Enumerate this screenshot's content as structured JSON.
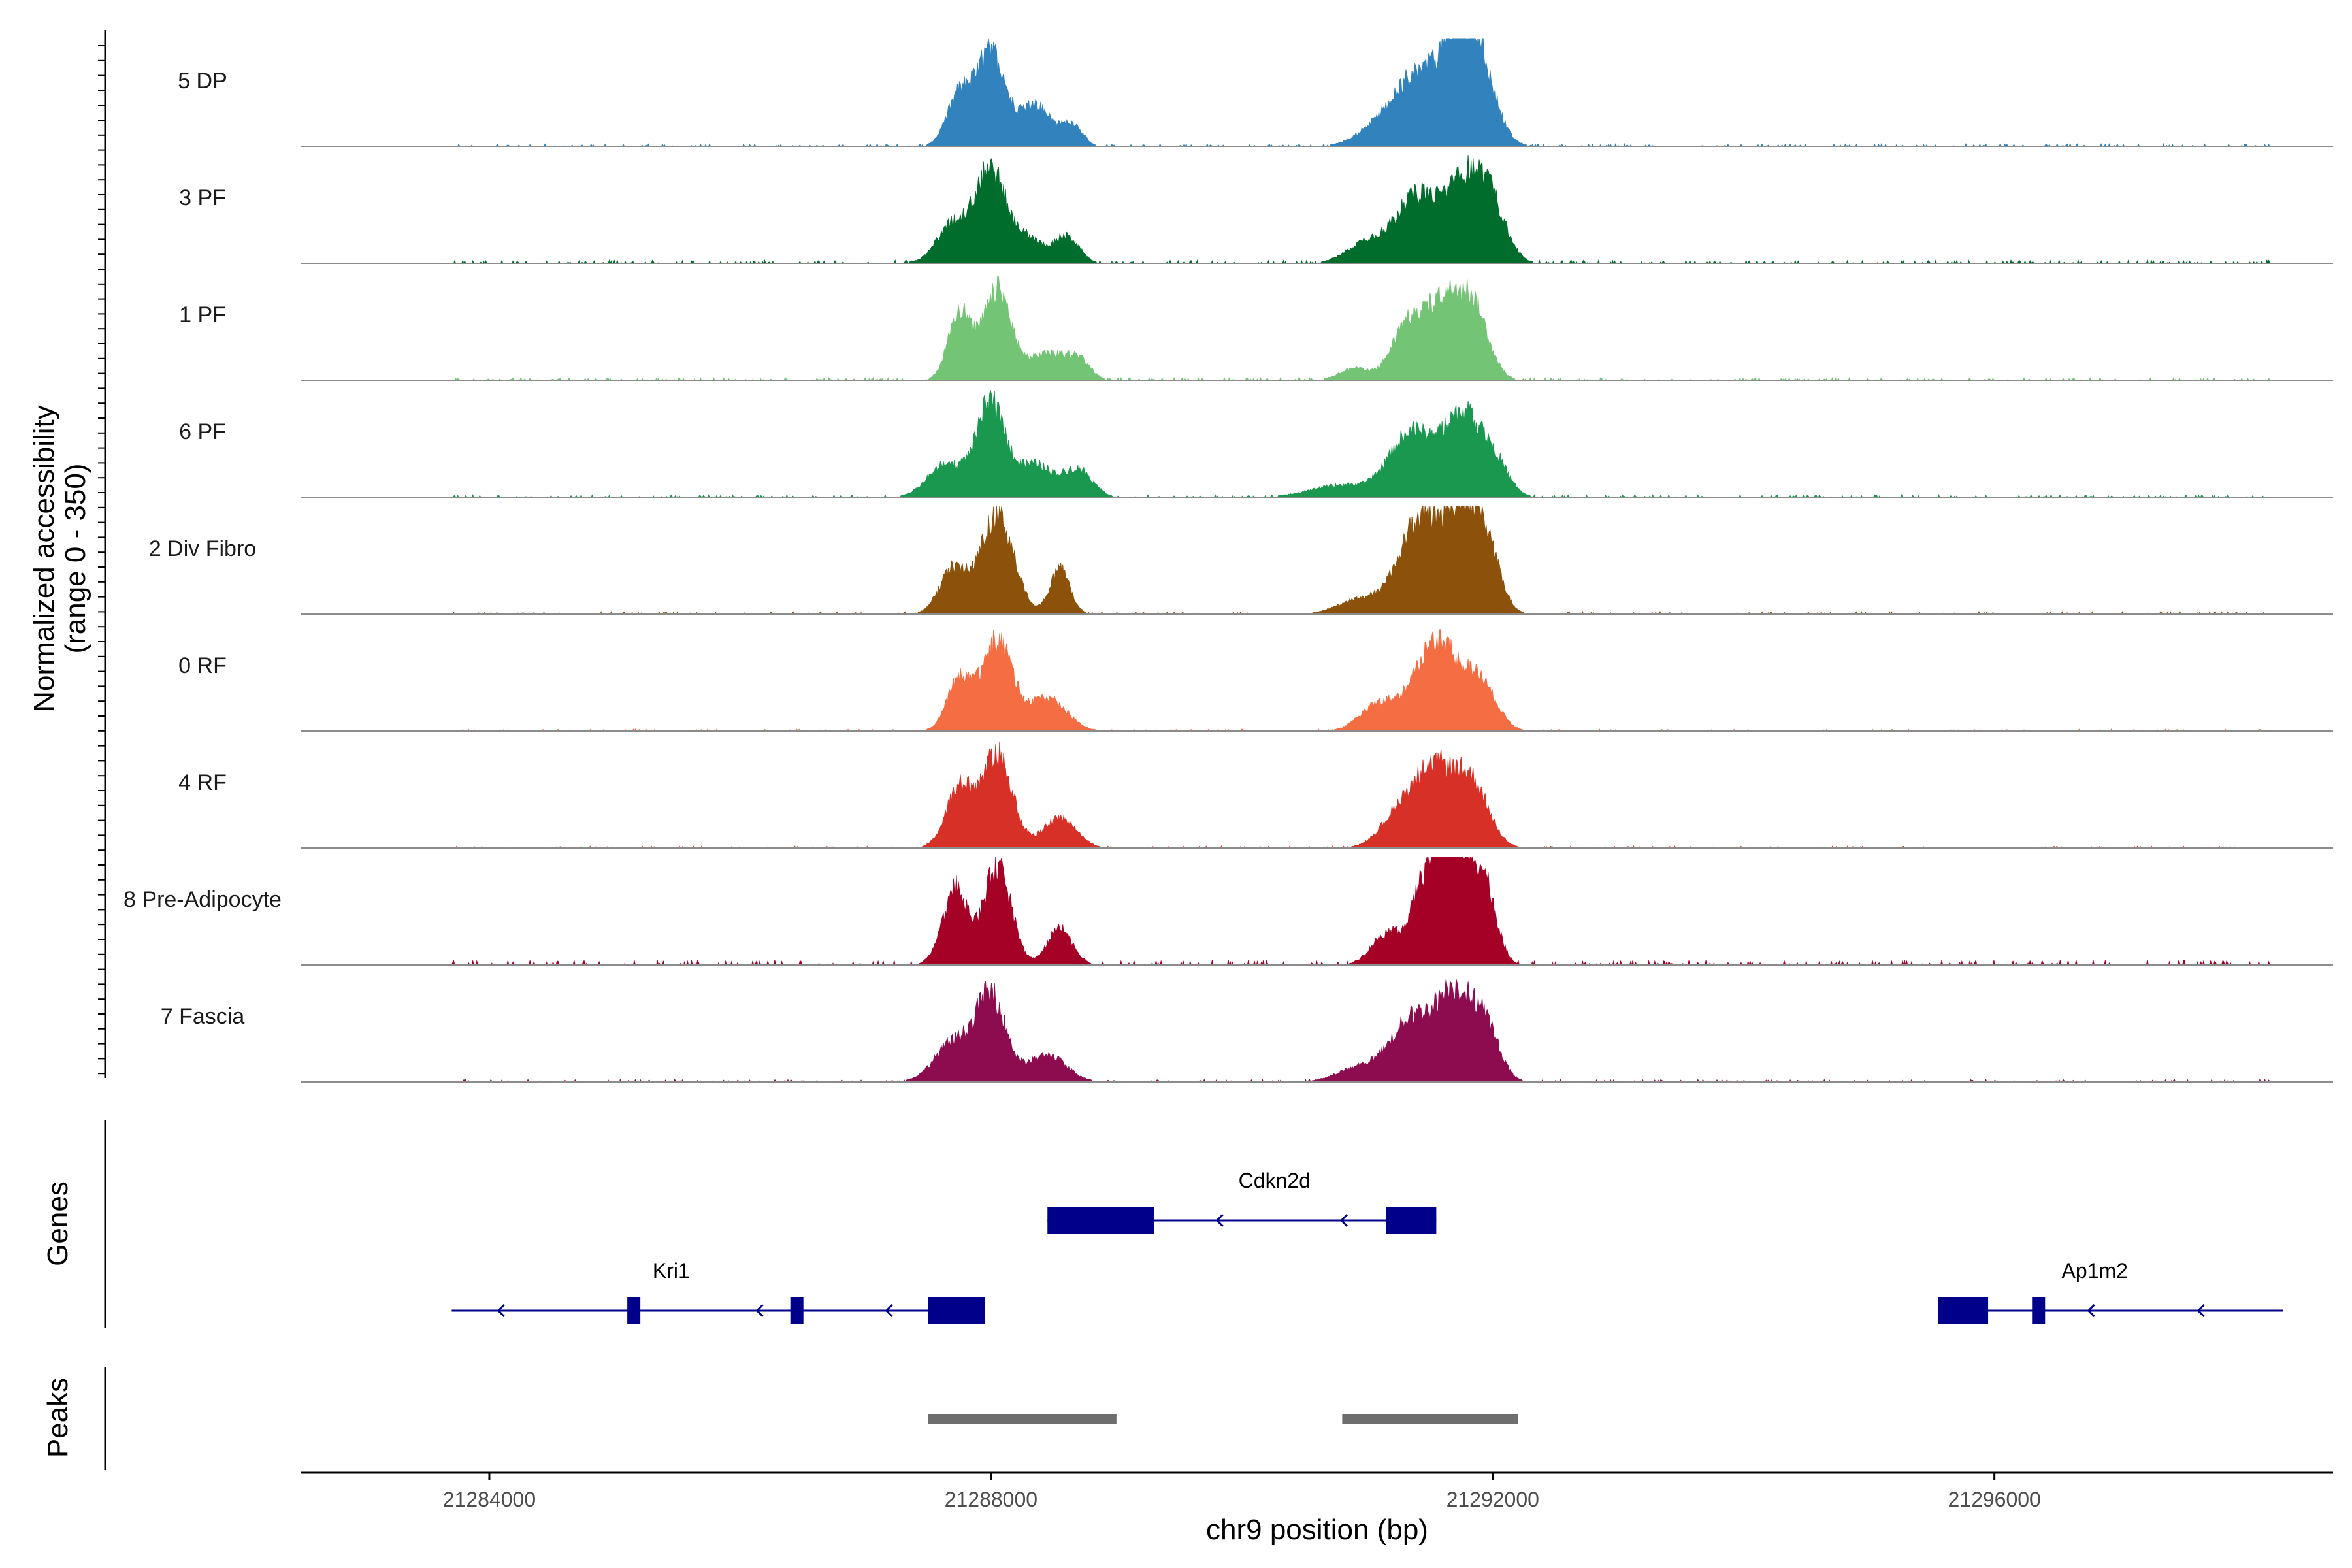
{
  "chart_data": {
    "type": "area",
    "title": "",
    "chromosome": "chr9",
    "xlabel": "chr9 position (bp)",
    "ylabel": "Normalized accessibility",
    "ylabel_range": "(range 0 - 350)",
    "xlim": [
      21282500,
      21298700
    ],
    "ylim": [
      0,
      350
    ],
    "x_ticks": [
      21284000,
      21288000,
      21292000,
      21296000
    ],
    "x_tick_labels": [
      "21284000",
      "21288000",
      "21292000",
      "21296000"
    ],
    "peak_regions": [
      [
        21287500,
        21289000
      ],
      [
        21290800,
        21292200
      ]
    ],
    "series": [
      {
        "name": "5 DP",
        "color": "#3182bd",
        "peaks": [
          [
            21287750,
            170,
            100
          ],
          [
            21288000,
            310,
            110
          ],
          [
            21288350,
            140,
            130
          ],
          [
            21288650,
            70,
            80
          ],
          [
            21291050,
            60,
            150
          ],
          [
            21291350,
            200,
            150
          ],
          [
            21291700,
            330,
            160
          ],
          [
            21291900,
            200,
            130
          ]
        ],
        "noise": 8
      },
      {
        "name": "3 PF",
        "color": "#006d2c",
        "peaks": [
          [
            21287700,
            130,
            130
          ],
          [
            21288000,
            310,
            120
          ],
          [
            21288300,
            80,
            110
          ],
          [
            21288600,
            90,
            100
          ],
          [
            21291000,
            70,
            160
          ],
          [
            21291400,
            220,
            170
          ],
          [
            21291800,
            270,
            160
          ],
          [
            21292000,
            120,
            120
          ]
        ],
        "noise": 10
      },
      {
        "name": "1 PF",
        "color": "#74c476",
        "peaks": [
          [
            21287750,
            230,
            90
          ],
          [
            21288050,
            300,
            110
          ],
          [
            21288450,
            90,
            150
          ],
          [
            21288700,
            60,
            90
          ],
          [
            21290900,
            40,
            120
          ],
          [
            21291300,
            150,
            120
          ],
          [
            21291600,
            260,
            160
          ],
          [
            21291850,
            200,
            120
          ]
        ],
        "noise": 8
      },
      {
        "name": "6 PF",
        "color": "#1a9850",
        "peaks": [
          [
            21287650,
            110,
            150
          ],
          [
            21288000,
            310,
            110
          ],
          [
            21288350,
            110,
            150
          ],
          [
            21288700,
            90,
            110
          ],
          [
            21290800,
            40,
            250
          ],
          [
            21291350,
            210,
            170
          ],
          [
            21291750,
            260,
            150
          ],
          [
            21292000,
            110,
            120
          ]
        ],
        "noise": 8
      },
      {
        "name": "2 Div Fibro",
        "color": "#8c510a",
        "peaks": [
          [
            21287700,
            150,
            110
          ],
          [
            21288050,
            330,
            130
          ],
          [
            21288550,
            150,
            80
          ],
          [
            21290950,
            50,
            180
          ],
          [
            21291400,
            290,
            160
          ],
          [
            21291750,
            330,
            150
          ],
          [
            21291950,
            160,
            110
          ]
        ],
        "noise": 8
      },
      {
        "name": "0 RF",
        "color": "#f46d43",
        "peaks": [
          [
            21287750,
            170,
            100
          ],
          [
            21288050,
            300,
            120
          ],
          [
            21288450,
            110,
            150
          ],
          [
            21291100,
            90,
            150
          ],
          [
            21291550,
            300,
            170
          ],
          [
            21291900,
            150,
            130
          ]
        ],
        "noise": 6
      },
      {
        "name": "4 RF",
        "color": "#d73027",
        "peaks": [
          [
            21287750,
            200,
            110
          ],
          [
            21288050,
            310,
            120
          ],
          [
            21288550,
            100,
            130
          ],
          [
            21291250,
            100,
            150
          ],
          [
            21291550,
            260,
            170
          ],
          [
            21291850,
            180,
            130
          ]
        ],
        "noise": 6
      },
      {
        "name": "8 Pre-Adipocyte",
        "color": "#a50026",
        "peaks": [
          [
            21287650,
            110,
            90
          ],
          [
            21287750,
            190,
            80
          ],
          [
            21288050,
            330,
            110
          ],
          [
            21288550,
            120,
            100
          ],
          [
            21291150,
            100,
            120
          ],
          [
            21291500,
            300,
            130
          ],
          [
            21291750,
            340,
            140
          ],
          [
            21291950,
            170,
            90
          ]
        ],
        "noise": 16
      },
      {
        "name": "7 Fascia",
        "color": "#8c0c4f",
        "peaks": [
          [
            21287700,
            130,
            150
          ],
          [
            21288000,
            280,
            120
          ],
          [
            21288450,
            90,
            150
          ],
          [
            21290950,
            50,
            180
          ],
          [
            21291350,
            200,
            160
          ],
          [
            21291700,
            290,
            150
          ],
          [
            21291950,
            150,
            110
          ]
        ],
        "noise": 8
      }
    ],
    "genes": [
      {
        "name": "Cdkn2d",
        "strand": "-",
        "row": 1,
        "start": 21288450,
        "end": 21291550,
        "exons": [
          [
            21288450,
            21289300
          ],
          [
            21291150,
            21291550
          ]
        ]
      },
      {
        "name": "Kri1",
        "strand": "-",
        "row": 2,
        "start": 21283700,
        "end": 21287950,
        "exons": [
          [
            21285100,
            21285200
          ],
          [
            21286400,
            21286500
          ],
          [
            21287500,
            21287950
          ]
        ]
      },
      {
        "name": "Ap1m2",
        "strand": "-",
        "row": 2,
        "start": 21295550,
        "end": 21298300,
        "exons": [
          [
            21295550,
            21295950
          ],
          [
            21296300,
            21296350
          ]
        ]
      }
    ]
  },
  "panels": {
    "genes_label": "Genes",
    "peaks_label": "Peaks"
  },
  "colors": {
    "gene": "#00008b",
    "peak": "#6e6e6e",
    "baseline": "#8c8c8c",
    "axis": "#000000"
  }
}
